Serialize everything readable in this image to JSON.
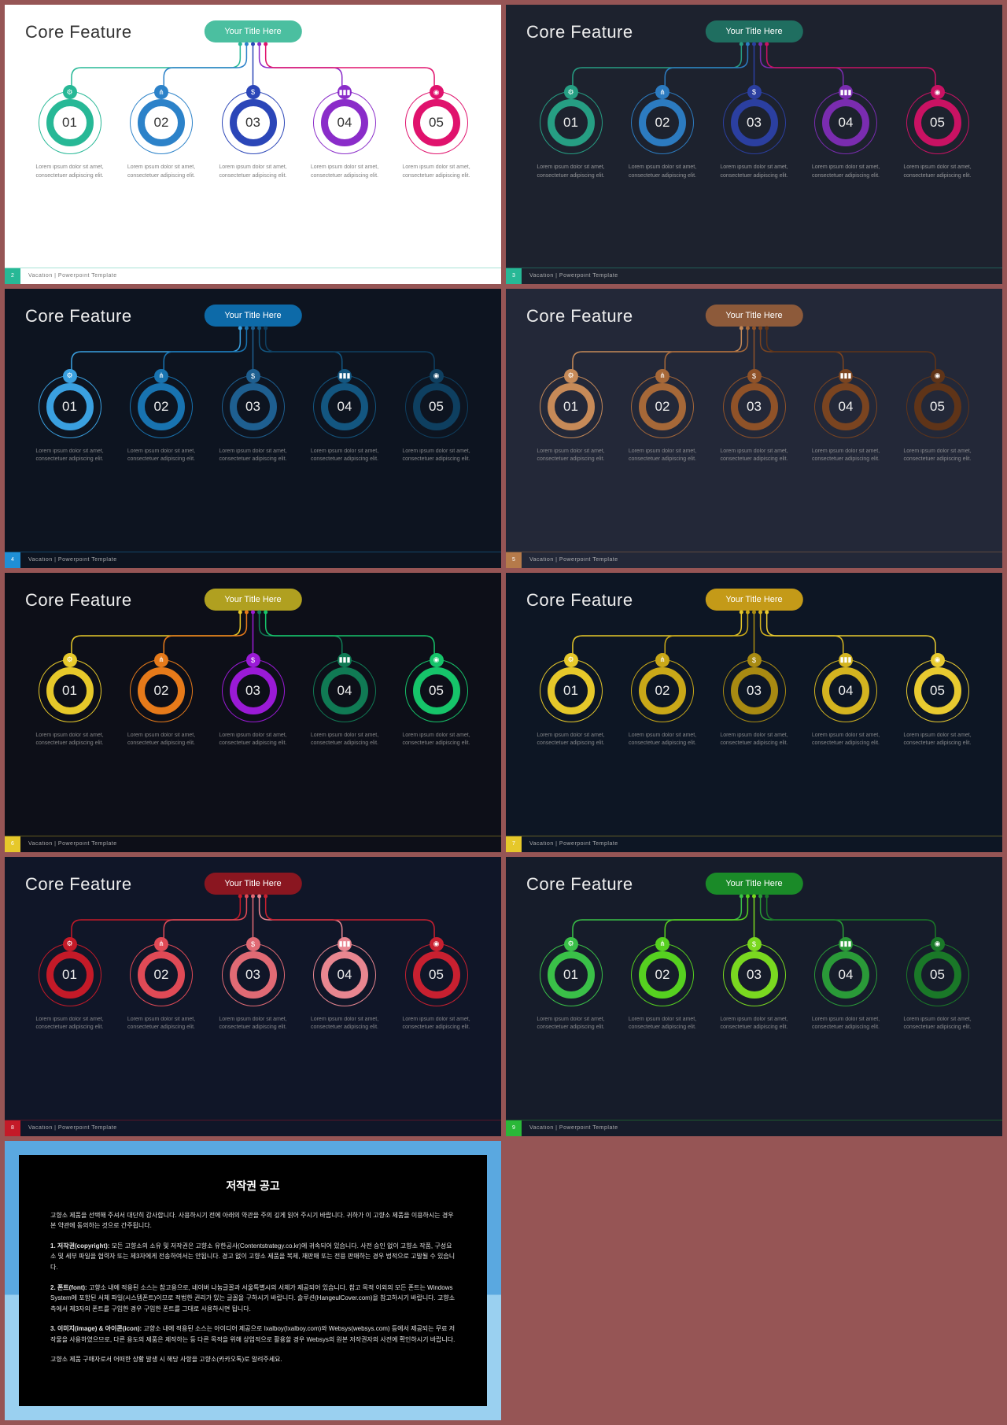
{
  "page_bg": "#965555",
  "common": {
    "slide_title": "Core Feature",
    "pill_label": "Your Title Here",
    "footer_text": "Vacation | Powerpoint Template",
    "item_desc": "Lorem ipsum dolor sit amet, consectetuer adipiscing elit.",
    "numbers": [
      "01",
      "02",
      "03",
      "04",
      "05"
    ],
    "icons": [
      "⚙",
      "⋔",
      "$",
      "▮▮▮",
      "◉"
    ]
  },
  "slides": [
    {
      "page": "2",
      "bg": "#ffffff",
      "title_color": "#333333",
      "desc_color": "#555555",
      "num_color": "#333333",
      "pill_bg": "#4bbfa0",
      "accent": "#27b896",
      "footer_text_color": "#555555",
      "inner_bg": "#ffffff",
      "circles": [
        "#27b896",
        "#2c82c9",
        "#2b46b8",
        "#8a2cc9",
        "#e0126d"
      ]
    },
    {
      "page": "3",
      "bg": "#1d222e",
      "title_color": "#eeeeee",
      "desc_color": "#bbbbbb",
      "num_color": "#eeeeee",
      "pill_bg": "#1f6e60",
      "accent": "#27b896",
      "footer_text_color": "#cccccc",
      "inner_bg": "#1d222e",
      "circles": [
        "#269e83",
        "#2c7bc0",
        "#2b3fa0",
        "#7a2cb0",
        "#c91263"
      ]
    },
    {
      "page": "4",
      "bg": "#0d1420",
      "title_color": "#eeeeee",
      "desc_color": "#aaaaaa",
      "num_color": "#eeeeee",
      "pill_bg": "#0d6aa8",
      "accent": "#1f8fd6",
      "footer_text_color": "#cccccc",
      "inner_bg": "#0d1420",
      "circles": [
        "#3aa0e0",
        "#1873b0",
        "#1e5f90",
        "#135680",
        "#0e3f60"
      ]
    },
    {
      "page": "5",
      "bg": "#232838",
      "title_color": "#eeeeee",
      "desc_color": "#aaaaaa",
      "num_color": "#eeeeee",
      "pill_bg": "#8d5a3a",
      "accent": "#b57a4a",
      "footer_text_color": "#cccccc",
      "inner_bg": "#232838",
      "circles": [
        "#c68a58",
        "#a66838",
        "#8f5228",
        "#7a4420",
        "#5f3418"
      ]
    },
    {
      "page": "6",
      "bg": "#0d0f18",
      "title_color": "#eeeeee",
      "desc_color": "#aaaaaa",
      "num_color": "#eeeeee",
      "pill_bg": "#b0a020",
      "accent": "#e6c82a",
      "footer_text_color": "#cccccc",
      "inner_bg": "#0d0f18",
      "circles": [
        "#e6c82a",
        "#e67a1a",
        "#9a1ad6",
        "#107a54",
        "#16c46a"
      ]
    },
    {
      "page": "7",
      "bg": "#0d1624",
      "title_color": "#eeeeee",
      "desc_color": "#aaaaaa",
      "num_color": "#eeeeee",
      "pill_bg": "#c49a18",
      "accent": "#e6c82a",
      "footer_text_color": "#cccccc",
      "inner_bg": "#0d1624",
      "circles": [
        "#e6c82a",
        "#c9a818",
        "#a88a12",
        "#d4b420",
        "#e8ca30"
      ]
    },
    {
      "page": "8",
      "bg": "#101628",
      "title_color": "#eeeeee",
      "desc_color": "#aaaaaa",
      "num_color": "#eeeeee",
      "pill_bg": "#8a1620",
      "accent": "#c41a28",
      "footer_text_color": "#cccccc",
      "inner_bg": "#101628",
      "circles": [
        "#c41a28",
        "#e04a56",
        "#e06a74",
        "#e88690",
        "#c82030"
      ]
    },
    {
      "page": "9",
      "bg": "#161c2a",
      "title_color": "#eeeeee",
      "desc_color": "#aaaaaa",
      "num_color": "#eeeeee",
      "pill_bg": "#1a8a28",
      "accent": "#2ab838",
      "footer_text_color": "#cccccc",
      "inner_bg": "#161c2a",
      "circles": [
        "#3ac048",
        "#56d020",
        "#7ad820",
        "#2a9a38",
        "#1a7828"
      ]
    }
  ],
  "copyright": {
    "outer_bg_top": "#5aa8e0",
    "outer_bg_bottom": "#9ad0f0",
    "title": "저작권 공고",
    "p1": "고향소 제품을 선택해 주셔서 대단히 감사합니다. 사용하시기 전에 아래의 약관을 주의 깊게 읽어 주시기 바랍니다. 귀하가 이 고향소 제품을 이용하시는 경우 본 약관에 동의하는 것으로 간주됩니다.",
    "p2_h": "1. 저작권(copyright):",
    "p2": "모든 고향소의 소유 및 저작권은 고향소 유한공사(Contentstrategy.co.kr)에 귀속되어 있습니다. 사전 승인 없이 고향소 작품, 구성요소 및 세부 파일을 협력자 또는 제3자에게 전송하여서는 안됩니다. 경고 없이 고향소 제품을 복제, 재판매 또는 전용 판매하는 경우 법적으로 고발될 수 있습니다.",
    "p3_h": "2. 폰트(font):",
    "p3": "고향소 내에 적용된 소스는 참고용으로, 네이버 나눔글꼴과 서울특별시의 서체가 제공되어 있습니다. 참고 목적 이외의 모든 폰트는 Windows System에 포함된 서체 파일(시스템폰트)이므로 적법한 권리가 있는 글꼴을 구하시기 바랍니다. 솔루션(HangeulCover.com)을 참고하시기 바랍니다. 고향소 측에서 제3자의 폰트를 구입한 경우 구입한 폰트를 그대로 사용하시면 됩니다.",
    "p4_h": "3. 이미지(image) & 아이콘(icon):",
    "p4": "고향소 내에 적용된 소스는 아이디어 제공으로 Ixalboy(Ixalboy.com)와 Websys(websys.com) 등에서 제공되는 무료 저작물을 사용하였으므로, 다른 용도의 제품은 제작하는 등 다른 목적을 위해 상업적으로 활용할 경우 Websys의 원본 저작권자의 사전에 확인하시기 바랍니다.",
    "p5": "고향소 제품 구매자로서 어떠한 상황 발생 시 해당 사항을 고향소(카카오톡)로 알려주세요."
  }
}
